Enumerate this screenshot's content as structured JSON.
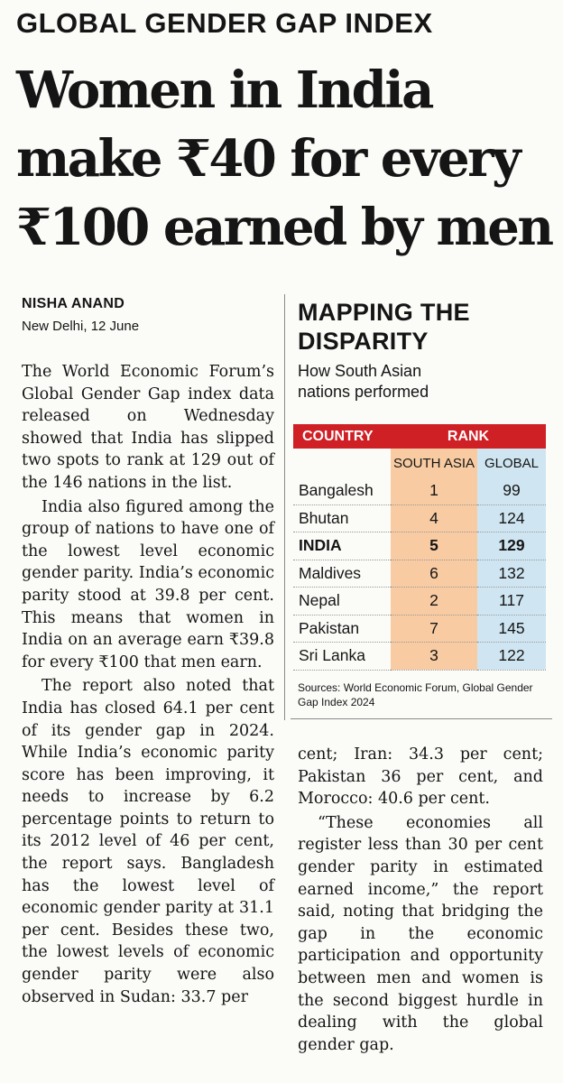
{
  "kicker": "GLOBAL GENDER GAP INDEX",
  "headline": {
    "lines": [
      "Women in India",
      "make ₹40 for every",
      "₹100 earned by men"
    ]
  },
  "byline": {
    "author": "NISHA ANAND",
    "dateline": "New Delhi, 12 June"
  },
  "body": {
    "left_column": [
      "The World Economic Forum’s Global Gender Gap index data released on Wednesday showed that India has slipped two spots to rank at 129 out of the 146 nations in the list.",
      "India also figured among the group of nations to have one of the lowest level economic gender parity. India’s economic parity stood at 39.8 per cent. This means that women in India on an average earn ₹39.8 for every ₹100 that men earn.",
      "The report also noted that India has closed 64.1 per cent of its gender gap in 2024. While India’s economic parity score has been improving, it needs to increase by 6.2 percentage points to return to its 2012 level of 46 per cent, the report says. Bangladesh has the lowest level of economic gender parity at 31.1 per cent. Besides these two, the lowest levels of economic gender parity were also observed in Sudan: 33.7 per"
    ],
    "right_column": [
      "cent; Iran: 34.3 per cent; Pakistan 36 per cent, and Morocco: 40.6 per cent.",
      "“These economies all register less than 30 per cent gender parity in estimated earned income,” the report said, noting that bridging the gap in the economic participation and opportunity between men and women is the second biggest hurdle in dealing with the global gender gap."
    ]
  },
  "sidebar": {
    "title_lines": [
      "MAPPING THE",
      "DISPARITY"
    ],
    "subtitle_lines": [
      "How South Asian",
      "nations performed"
    ],
    "table": {
      "header_country": "COUNTRY",
      "header_rank": "RANK",
      "sub_south_asia": "SOUTH ASIA",
      "sub_global": "GLOBAL",
      "rows": [
        {
          "country": "Bangalesh",
          "south_asia": "1",
          "global": "99"
        },
        {
          "country": "Bhutan",
          "south_asia": "4",
          "global": "124"
        },
        {
          "country": "INDIA",
          "south_asia": "5",
          "global": "129"
        },
        {
          "country": "Maldives",
          "south_asia": "6",
          "global": "132"
        },
        {
          "country": "Nepal",
          "south_asia": "2",
          "global": "117"
        },
        {
          "country": "Pakistan",
          "south_asia": "7",
          "global": "145"
        },
        {
          "country": "Sri Lanka",
          "south_asia": "3",
          "global": "122"
        }
      ]
    },
    "sources": "Sources: World Economic Forum, Global Gender Gap Index 2024"
  },
  "colors": {
    "table_header": "#cf2026",
    "south_asia_fill": "#f8cba2",
    "global_fill": "#cfe6f2"
  }
}
